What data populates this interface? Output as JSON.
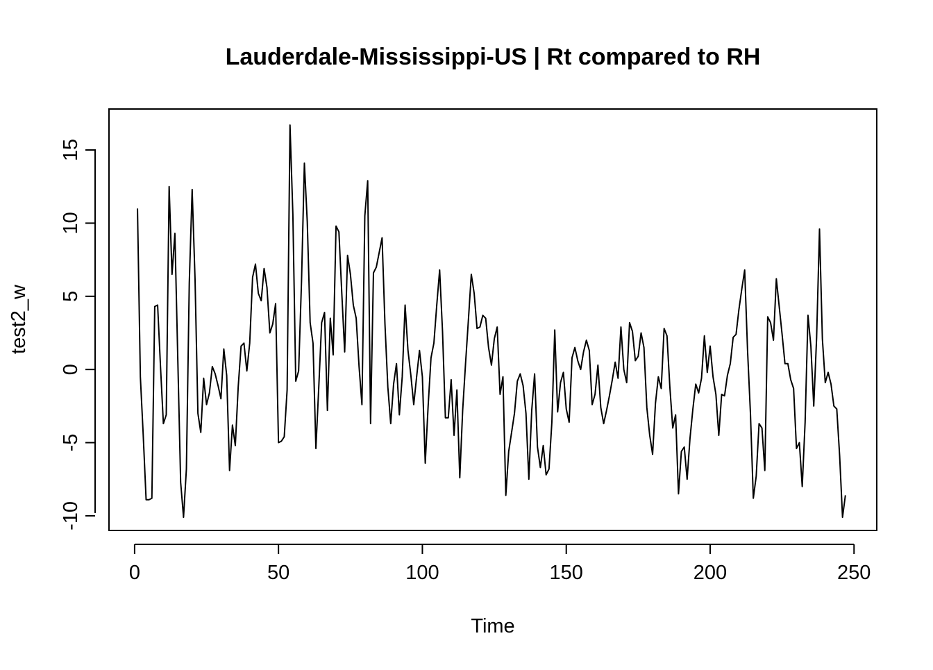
{
  "chart_data": {
    "type": "line",
    "title": "Lauderdale-Mississippi-US | Rt compared to RH",
    "xlabel": "Time",
    "ylabel": "test2_w",
    "xlim": [
      -8.9,
      257.9
    ],
    "ylim": [
      -11.0,
      17.8
    ],
    "x_ticks": [
      0,
      50,
      100,
      150,
      200,
      250
    ],
    "y_ticks": [
      -10,
      -5,
      0,
      5,
      10,
      15
    ],
    "x_tick_labels": [
      "0",
      "50",
      "100",
      "150",
      "200",
      "250"
    ],
    "y_tick_labels": [
      "-10",
      "-5",
      "0",
      "5",
      "10",
      "15"
    ],
    "line_color": "#000000",
    "series": [
      {
        "name": "test2_w",
        "x_start": 1,
        "values": [
          11.0,
          -0.5,
          -4.5,
          -8.9,
          -8.9,
          -8.8,
          4.3,
          4.4,
          0.2,
          -3.7,
          -3.1,
          12.5,
          6.5,
          9.3,
          0.8,
          -7.7,
          -10.1,
          -6.8,
          5.9,
          12.3,
          6.2,
          -3.0,
          -4.3,
          -0.6,
          -2.4,
          -1.6,
          0.2,
          -0.3,
          -1.1,
          -2.0,
          1.4,
          -0.4,
          -6.9,
          -3.8,
          -5.2,
          -1.2,
          1.6,
          1.8,
          -0.1,
          1.8,
          6.3,
          7.2,
          5.2,
          4.7,
          6.9,
          5.6,
          2.5,
          3.1,
          4.5,
          -5.0,
          -4.9,
          -4.6,
          -1.4,
          16.7,
          10.6,
          -0.8,
          -0.1,
          6.0,
          14.1,
          10.1,
          3.2,
          1.8,
          -5.4,
          -1.2,
          3.2,
          3.9,
          -2.8,
          3.5,
          1.0,
          9.8,
          9.4,
          5.2,
          1.2,
          7.8,
          6.5,
          4.4,
          3.5,
          0.2,
          -2.4,
          10.5,
          12.9,
          -3.7,
          6.6,
          7.0,
          8.0,
          9.0,
          3.1,
          -1.2,
          -3.7,
          -1.0,
          0.4,
          -3.1,
          -0.5,
          4.4,
          1.3,
          -0.4,
          -2.4,
          -0.5,
          1.3,
          -0.5,
          -6.4,
          -2.5,
          0.8,
          1.8,
          4.4,
          6.8,
          2.6,
          -3.3,
          -3.3,
          -0.7,
          -4.5,
          -1.4,
          -7.4,
          -2.8,
          0.4,
          3.4,
          6.5,
          5.2,
          2.8,
          2.9,
          3.7,
          3.5,
          1.5,
          0.3,
          2.1,
          2.9,
          -1.7,
          -0.5,
          -8.6,
          -5.6,
          -4.3,
          -3.0,
          -0.8,
          -0.3,
          -1.1,
          -3.0,
          -7.5,
          -2.8,
          -0.3,
          -5.3,
          -6.7,
          -5.2,
          -7.2,
          -6.8,
          -3.6,
          2.7,
          -2.9,
          -0.9,
          -0.2,
          -2.7,
          -3.6,
          0.8,
          1.5,
          0.6,
          0.0,
          1.2,
          2.0,
          1.3,
          -2.4,
          -1.7,
          0.3,
          -2.6,
          -3.7,
          -2.8,
          -1.8,
          -0.7,
          0.5,
          -0.6,
          2.9,
          0.0,
          -0.9,
          3.2,
          2.6,
          0.6,
          0.9,
          2.5,
          1.5,
          -2.6,
          -4.5,
          -5.8,
          -2.3,
          -0.5,
          -1.3,
          2.8,
          2.3,
          -1.2,
          -4.0,
          -3.1,
          -8.5,
          -5.6,
          -5.3,
          -7.5,
          -4.7,
          -2.7,
          -1.0,
          -1.6,
          -0.6,
          2.3,
          -0.2,
          1.6,
          -0.5,
          -1.7,
          -4.5,
          -1.7,
          -1.8,
          -0.4,
          0.4,
          2.2,
          2.4,
          4.1,
          5.5,
          6.8,
          1.3,
          -3.0,
          -8.8,
          -7.3,
          -3.7,
          -4.0,
          -6.9,
          3.6,
          3.2,
          2.0,
          6.2,
          4.3,
          2.4,
          0.4,
          0.4,
          -0.7,
          -1.3,
          -5.4,
          -5.0,
          -8.0,
          -3.6,
          3.7,
          1.6,
          -2.5,
          2.2,
          9.6,
          2.1,
          -0.9,
          -0.2,
          -1.0,
          -2.5,
          -2.7,
          -5.9,
          -10.1,
          -8.6
        ]
      }
    ]
  }
}
